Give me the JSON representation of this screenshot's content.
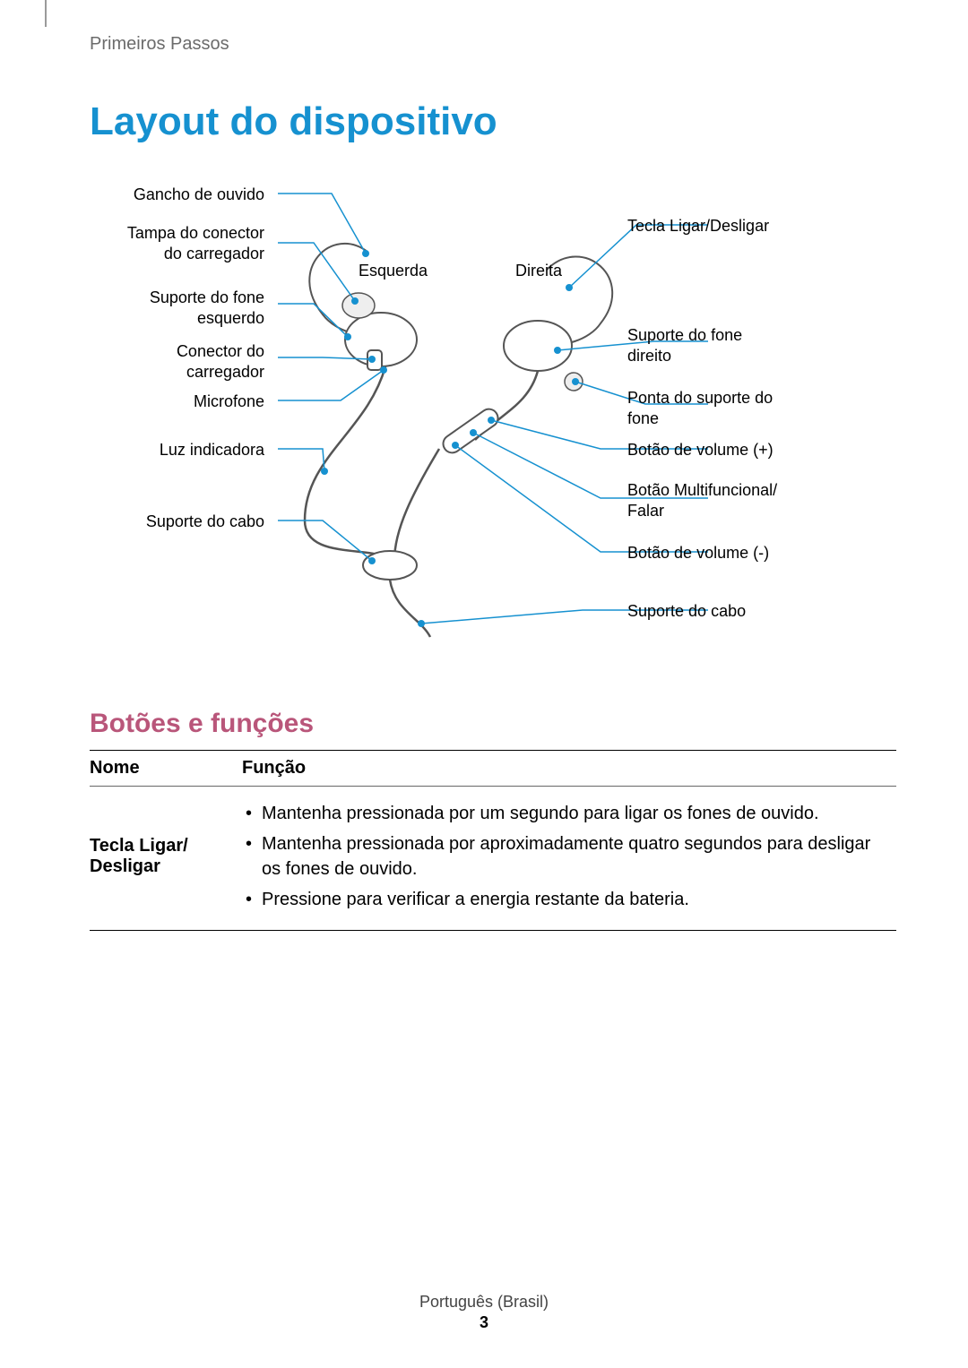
{
  "colors": {
    "title": "#1691d0",
    "subtitle": "#b9567a",
    "leader": "#1691d0",
    "text": "#000000",
    "breadcrumb": "#6b6b6b",
    "device_stroke": "#555555"
  },
  "breadcrumb": "Primeiros Passos",
  "title": "Layout do dispositivo",
  "subtitle": "Botões e funções",
  "diagram": {
    "center_labels": {
      "left": "Esquerda",
      "right": "Direita"
    },
    "left_labels": [
      "Gancho de ouvido",
      "Tampa do conector\ndo carregador",
      "Suporte do fone\nesquerdo",
      "Conector do\ncarregador",
      "Microfone",
      "Luz indicadora",
      "Suporte do cabo"
    ],
    "right_labels": [
      "Tecla Ligar/Desligar",
      "Suporte do fone\ndireito",
      "Ponta do suporte do\nfone",
      "Botão de volume (+)",
      "Botão Multifuncional/\nFalar",
      "Botão de volume (-)",
      "Suporte do cabo"
    ]
  },
  "table": {
    "headers": {
      "name": "Nome",
      "func": "Função"
    },
    "rows": [
      {
        "name": "Tecla Ligar/\nDesligar",
        "items": [
          "Mantenha pressionada por um segundo para ligar os fones de ouvido.",
          "Mantenha pressionada por aproximadamente quatro segundos para desligar os fones de ouvido.",
          "Pressione para verificar a energia restante da bateria."
        ]
      }
    ]
  },
  "footer": {
    "lang": "Português (Brasil)",
    "page": "3"
  }
}
